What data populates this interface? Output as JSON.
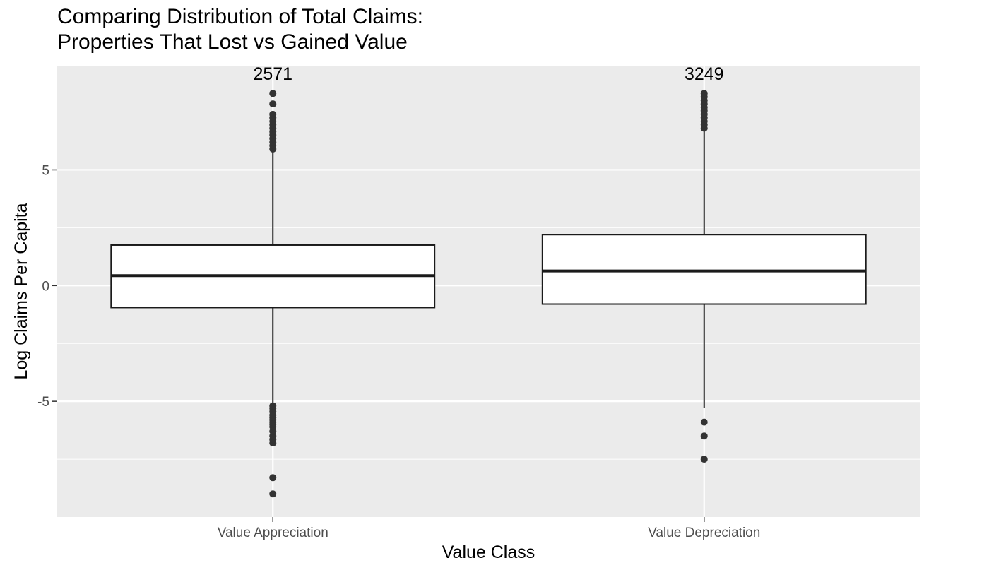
{
  "chart_data": {
    "type": "box",
    "title": [
      "Comparing Distribution of Total Claims:",
      "Properties That Lost vs Gained Value"
    ],
    "xlabel": "Value Class",
    "ylabel": "Log Claims Per Capita",
    "categories": [
      "Value Appreciation",
      "Value Depreciation"
    ],
    "ylim": [
      -10,
      9.5
    ],
    "yticks": [
      -5,
      0,
      5
    ],
    "ytick_labels": [
      "-5",
      "0",
      "5"
    ],
    "grid": true,
    "boxes": [
      {
        "category": "Value Appreciation",
        "count_label": "2571",
        "whisker_low": -5.1,
        "q1": -0.95,
        "median": 0.43,
        "q3": 1.75,
        "whisker_high": 5.8,
        "outliers": [
          -9.0,
          -8.3,
          -6.8,
          -6.65,
          -6.5,
          -6.3,
          -6.1,
          -6.0,
          -5.9,
          -5.8,
          -5.7,
          -5.6,
          -5.45,
          -5.3,
          -5.2,
          5.9,
          6.05,
          6.2,
          6.35,
          6.5,
          6.65,
          6.8,
          6.95,
          7.1,
          7.25,
          7.4,
          7.85,
          8.3
        ]
      },
      {
        "category": "Value Depreciation",
        "count_label": "3249",
        "whisker_low": -5.3,
        "q1": -0.8,
        "median": 0.63,
        "q3": 2.2,
        "whisker_high": 6.7,
        "outliers": [
          -7.5,
          -6.5,
          -5.9,
          6.8,
          6.95,
          7.1,
          7.25,
          7.4,
          7.55,
          7.7,
          7.85,
          8.0,
          8.15,
          8.3
        ]
      }
    ],
    "colors": {
      "panel_background": "#ebebeb",
      "grid_major": "#ffffff",
      "box_fill": "#ffffff",
      "box_stroke": "#1a1a1a",
      "outlier": "#333333",
      "tick_text": "#4d4d4d"
    }
  }
}
